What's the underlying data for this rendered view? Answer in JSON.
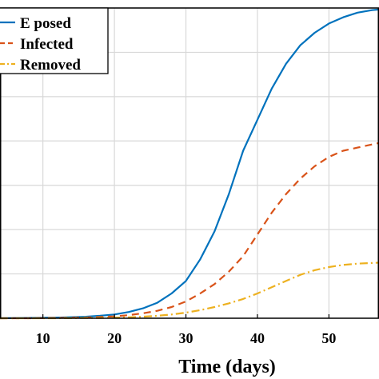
{
  "chart_data": {
    "type": "line",
    "xlabel": "Time (days)",
    "ylabel": "",
    "xlim": [
      4,
      57
    ],
    "ylim": [
      0,
      1.0
    ],
    "x_ticks": [
      10,
      20,
      30,
      40,
      50
    ],
    "grid": true,
    "legend_position": "top-left",
    "x": [
      4,
      8,
      12,
      16,
      18,
      20,
      22,
      24,
      26,
      28,
      30,
      32,
      34,
      36,
      38,
      40,
      42,
      44,
      46,
      48,
      50,
      52,
      54,
      56,
      57
    ],
    "series": [
      {
        "name": "E posed",
        "color": "#0072BD",
        "style": "solid",
        "values": [
          0.0,
          0.001,
          0.002,
          0.005,
          0.008,
          0.012,
          0.02,
          0.032,
          0.05,
          0.08,
          0.12,
          0.19,
          0.28,
          0.4,
          0.54,
          0.64,
          0.74,
          0.82,
          0.88,
          0.92,
          0.95,
          0.97,
          0.985,
          0.993,
          0.995
        ]
      },
      {
        "name": "Infected",
        "color": "#D95319",
        "style": "dashed",
        "values": [
          0.0,
          0.0,
          0.001,
          0.002,
          0.004,
          0.006,
          0.01,
          0.016,
          0.024,
          0.036,
          0.054,
          0.08,
          0.11,
          0.15,
          0.2,
          0.27,
          0.34,
          0.4,
          0.45,
          0.49,
          0.52,
          0.54,
          0.55,
          0.56,
          0.565
        ]
      },
      {
        "name": "Removed",
        "color": "#EDB120",
        "style": "dashdot",
        "values": [
          0.0,
          0.0,
          0.0,
          0.001,
          0.001,
          0.002,
          0.003,
          0.005,
          0.008,
          0.012,
          0.018,
          0.026,
          0.036,
          0.048,
          0.062,
          0.08,
          0.1,
          0.12,
          0.14,
          0.155,
          0.165,
          0.172,
          0.176,
          0.178,
          0.179
        ]
      }
    ]
  }
}
